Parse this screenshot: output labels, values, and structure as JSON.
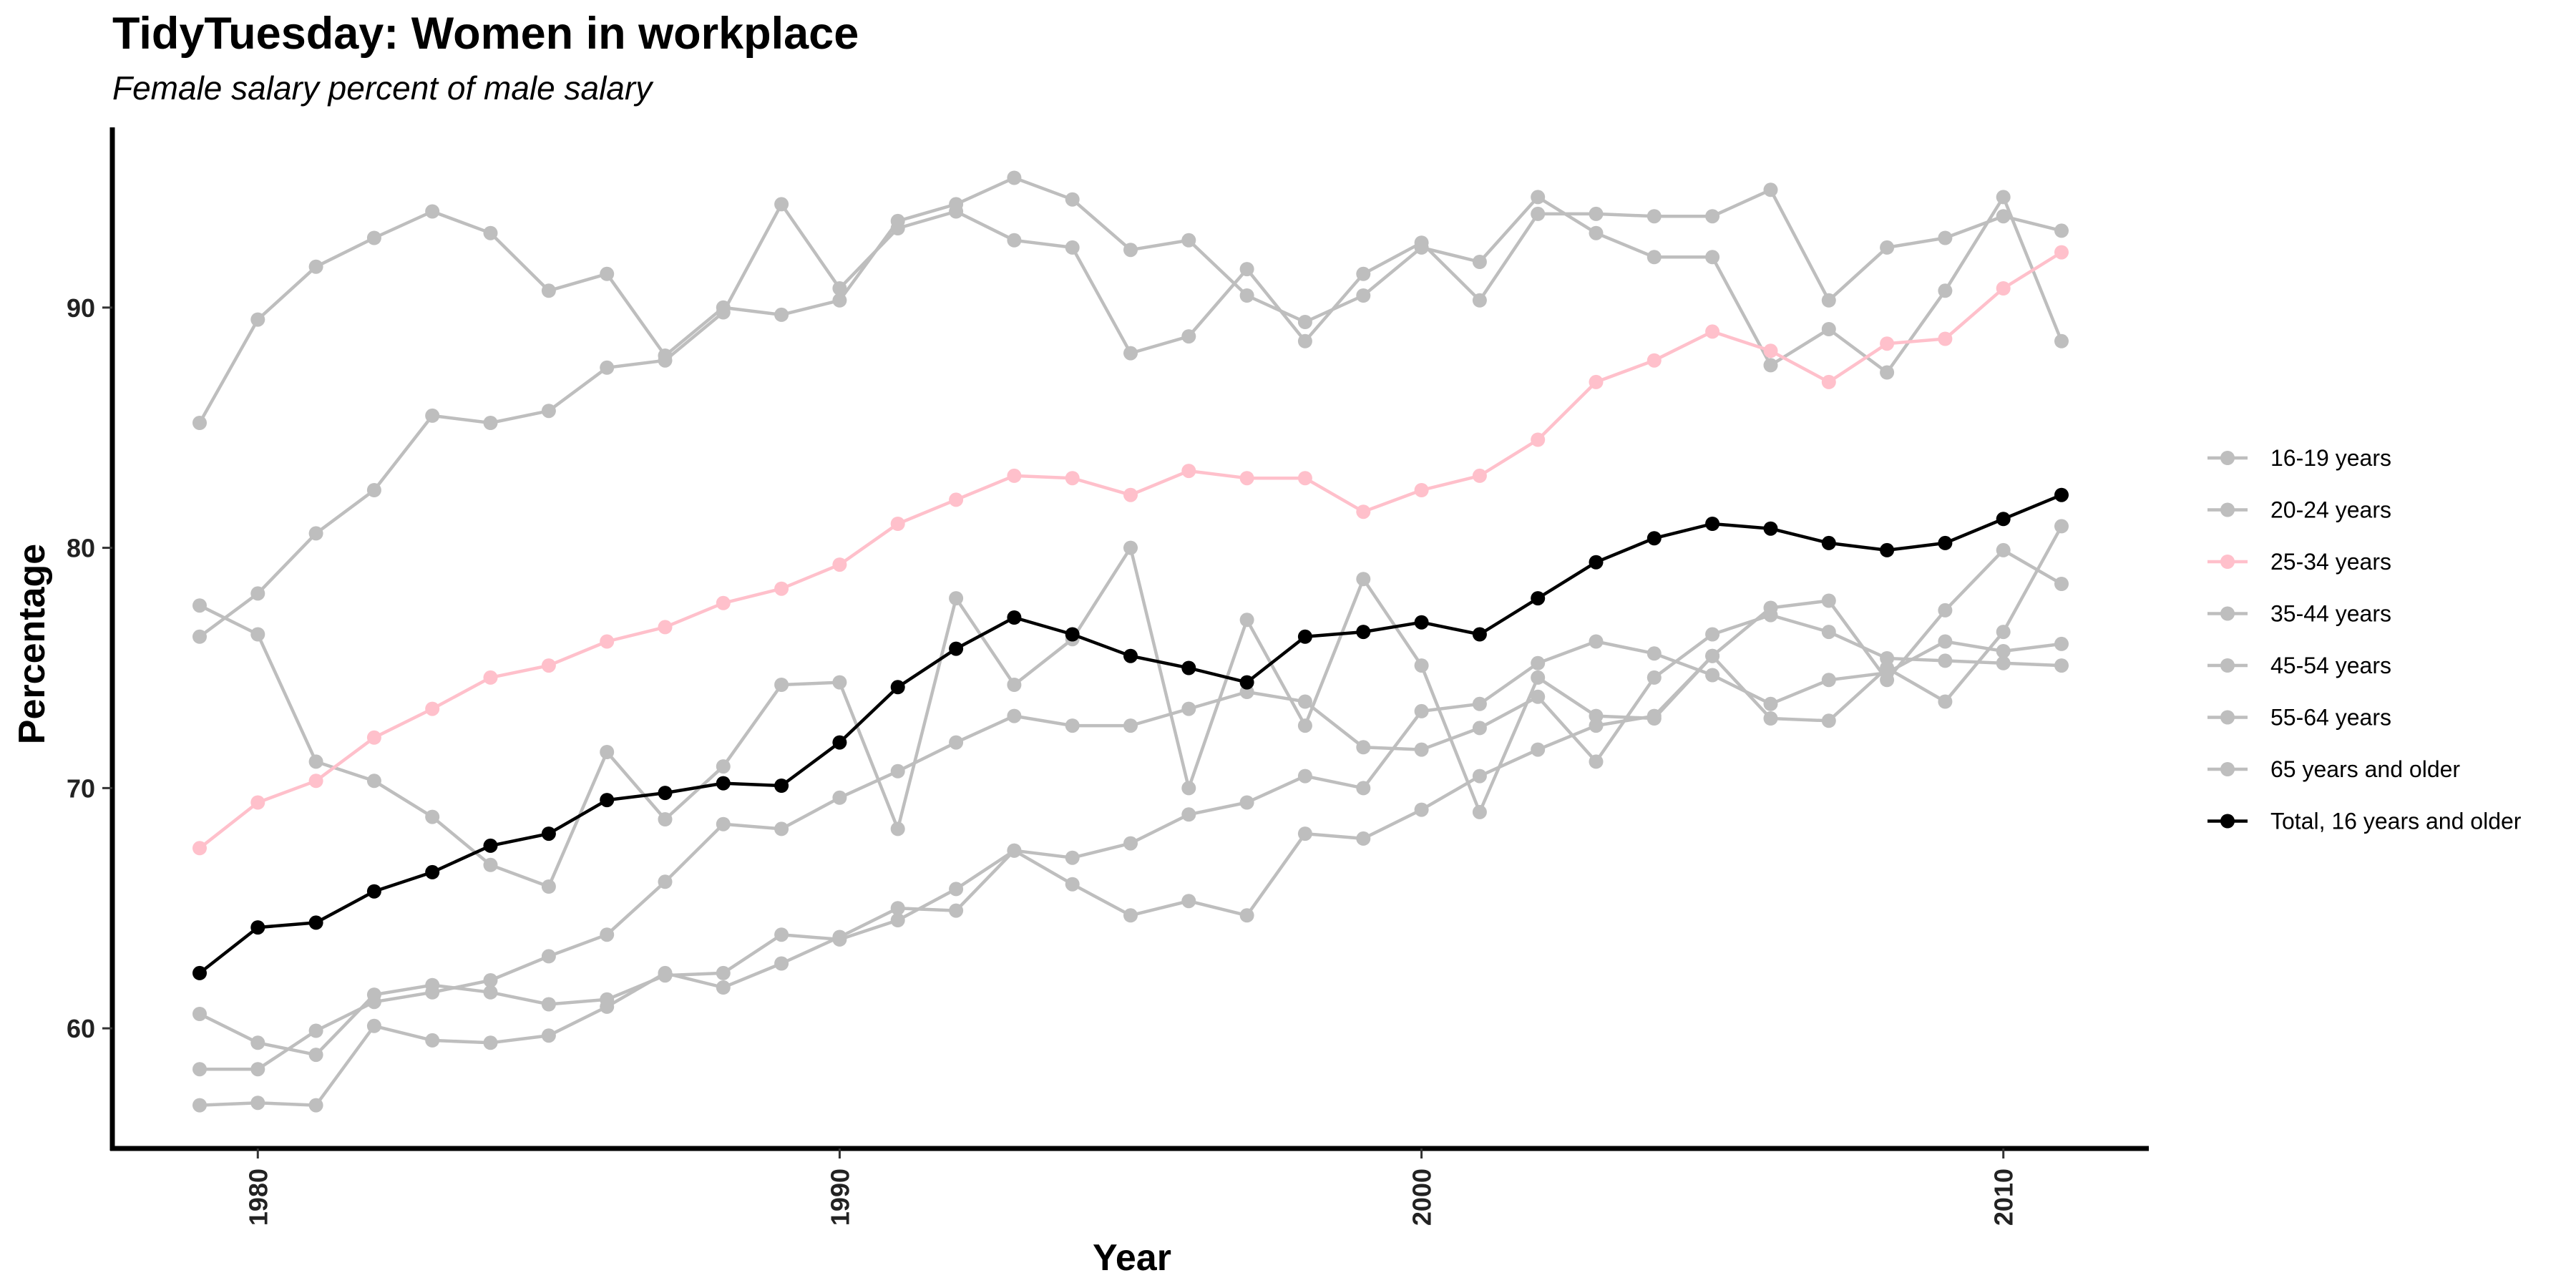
{
  "chart_data": {
    "type": "line",
    "title": "TidyTuesday: Women in workplace",
    "subtitle": "Female salary percent of male salary",
    "xlabel": "Year",
    "ylabel": "Percentage",
    "xlim": [
      1977.5,
      2012.5
    ],
    "ylim": [
      55,
      97.5
    ],
    "xticks": [
      1980,
      1990,
      2000,
      2010
    ],
    "yticks": [
      60,
      70,
      80,
      90
    ],
    "grid": false,
    "legend_position": "right",
    "x": [
      1979,
      1980,
      1981,
      1982,
      1983,
      1984,
      1985,
      1986,
      1987,
      1988,
      1989,
      1990,
      1991,
      1992,
      1993,
      1994,
      1995,
      1996,
      1997,
      1998,
      1999,
      2000,
      2001,
      2002,
      2003,
      2004,
      2005,
      2006,
      2007,
      2008,
      2009,
      2010,
      2011
    ],
    "series": [
      {
        "name": "16-19 years",
        "color": "#bebebe",
        "values": [
          85.2,
          89.5,
          91.7,
          92.9,
          94.0,
          93.1,
          90.7,
          91.4,
          88.0,
          90.0,
          89.7,
          90.3,
          93.6,
          94.3,
          95.4,
          94.5,
          92.4,
          92.8,
          90.5,
          89.4,
          90.5,
          92.5,
          91.9,
          94.6,
          93.1,
          92.1,
          92.1,
          87.6,
          89.1,
          87.3,
          90.7,
          94.6,
          88.6
        ]
      },
      {
        "name": "20-24 years",
        "color": "#bebebe",
        "values": [
          76.3,
          78.1,
          80.6,
          82.4,
          85.5,
          85.2,
          85.7,
          87.5,
          87.8,
          89.8,
          94.3,
          90.8,
          93.3,
          94.0,
          92.8,
          92.5,
          88.1,
          88.8,
          91.6,
          88.6,
          91.4,
          92.7,
          90.3,
          93.9,
          93.9,
          93.8,
          93.8,
          94.9,
          90.3,
          92.5,
          92.9,
          93.8,
          93.2
        ]
      },
      {
        "name": "25-34 years",
        "color": "#ffc0cb",
        "values": [
          67.5,
          69.4,
          70.3,
          72.1,
          73.3,
          74.6,
          75.1,
          76.1,
          76.7,
          77.7,
          78.3,
          79.3,
          81.0,
          82.0,
          83.0,
          82.9,
          82.2,
          83.2,
          82.9,
          82.9,
          81.5,
          82.4,
          83.0,
          84.5,
          86.9,
          87.8,
          89.0,
          88.2,
          86.9,
          88.5,
          88.7,
          90.8,
          92.3
        ]
      },
      {
        "name": "35-44 years",
        "color": "#bebebe",
        "values": [
          77.6,
          76.4,
          71.1,
          70.3,
          68.8,
          66.8,
          65.9,
          71.5,
          68.7,
          70.9,
          74.3,
          74.4,
          68.3,
          77.9,
          74.3,
          76.2,
          80.0,
          70.0,
          77.0,
          72.6,
          78.7,
          75.1,
          69.0,
          74.6,
          73.0,
          72.9,
          75.5,
          77.5,
          77.8,
          74.5,
          77.4,
          79.9,
          78.5
        ]
      },
      {
        "name": "45-54 years",
        "color": "#bebebe",
        "values": [
          60.6,
          59.4,
          58.9,
          61.4,
          61.8,
          61.5,
          61.0,
          61.2,
          62.2,
          62.3,
          63.9,
          63.7,
          64.5,
          65.8,
          67.4,
          67.1,
          67.7,
          68.9,
          69.4,
          70.5,
          70.0,
          73.2,
          73.5,
          75.2,
          76.1,
          75.6,
          74.7,
          73.5,
          74.5,
          74.8,
          76.1,
          75.7,
          76.0
        ]
      },
      {
        "name": "55-64 years",
        "color": "#bebebe",
        "values": [
          58.3,
          58.3,
          59.9,
          61.1,
          61.5,
          62.0,
          63.0,
          63.9,
          66.1,
          68.5,
          68.3,
          69.6,
          70.7,
          71.9,
          73.0,
          72.6,
          72.6,
          73.3,
          74.0,
          73.6,
          71.7,
          71.6,
          72.5,
          73.8,
          71.1,
          74.6,
          76.4,
          77.2,
          76.5,
          75.4,
          75.3,
          75.2,
          75.1
        ]
      },
      {
        "name": "65 years and older",
        "color": "#bebebe",
        "values": [
          56.8,
          56.9,
          56.8,
          60.1,
          59.5,
          59.4,
          59.7,
          60.9,
          62.3,
          61.7,
          62.7,
          63.8,
          65.0,
          64.9,
          67.4,
          66.0,
          64.7,
          65.3,
          64.7,
          68.1,
          67.9,
          69.1,
          70.5,
          71.6,
          72.6,
          73.0,
          75.5,
          72.9,
          72.8,
          75.0,
          73.6,
          76.5,
          80.9
        ]
      },
      {
        "name": "Total, 16 years and older",
        "color": "#000000",
        "values": [
          62.3,
          64.2,
          64.4,
          65.7,
          66.5,
          67.6,
          68.1,
          69.5,
          69.8,
          70.2,
          70.1,
          71.9,
          74.2,
          75.8,
          77.1,
          76.4,
          75.5,
          75.0,
          74.4,
          76.3,
          76.5,
          76.9,
          76.4,
          77.9,
          79.4,
          80.4,
          81.0,
          80.8,
          80.2,
          79.9,
          80.2,
          81.2,
          82.2
        ]
      }
    ]
  }
}
